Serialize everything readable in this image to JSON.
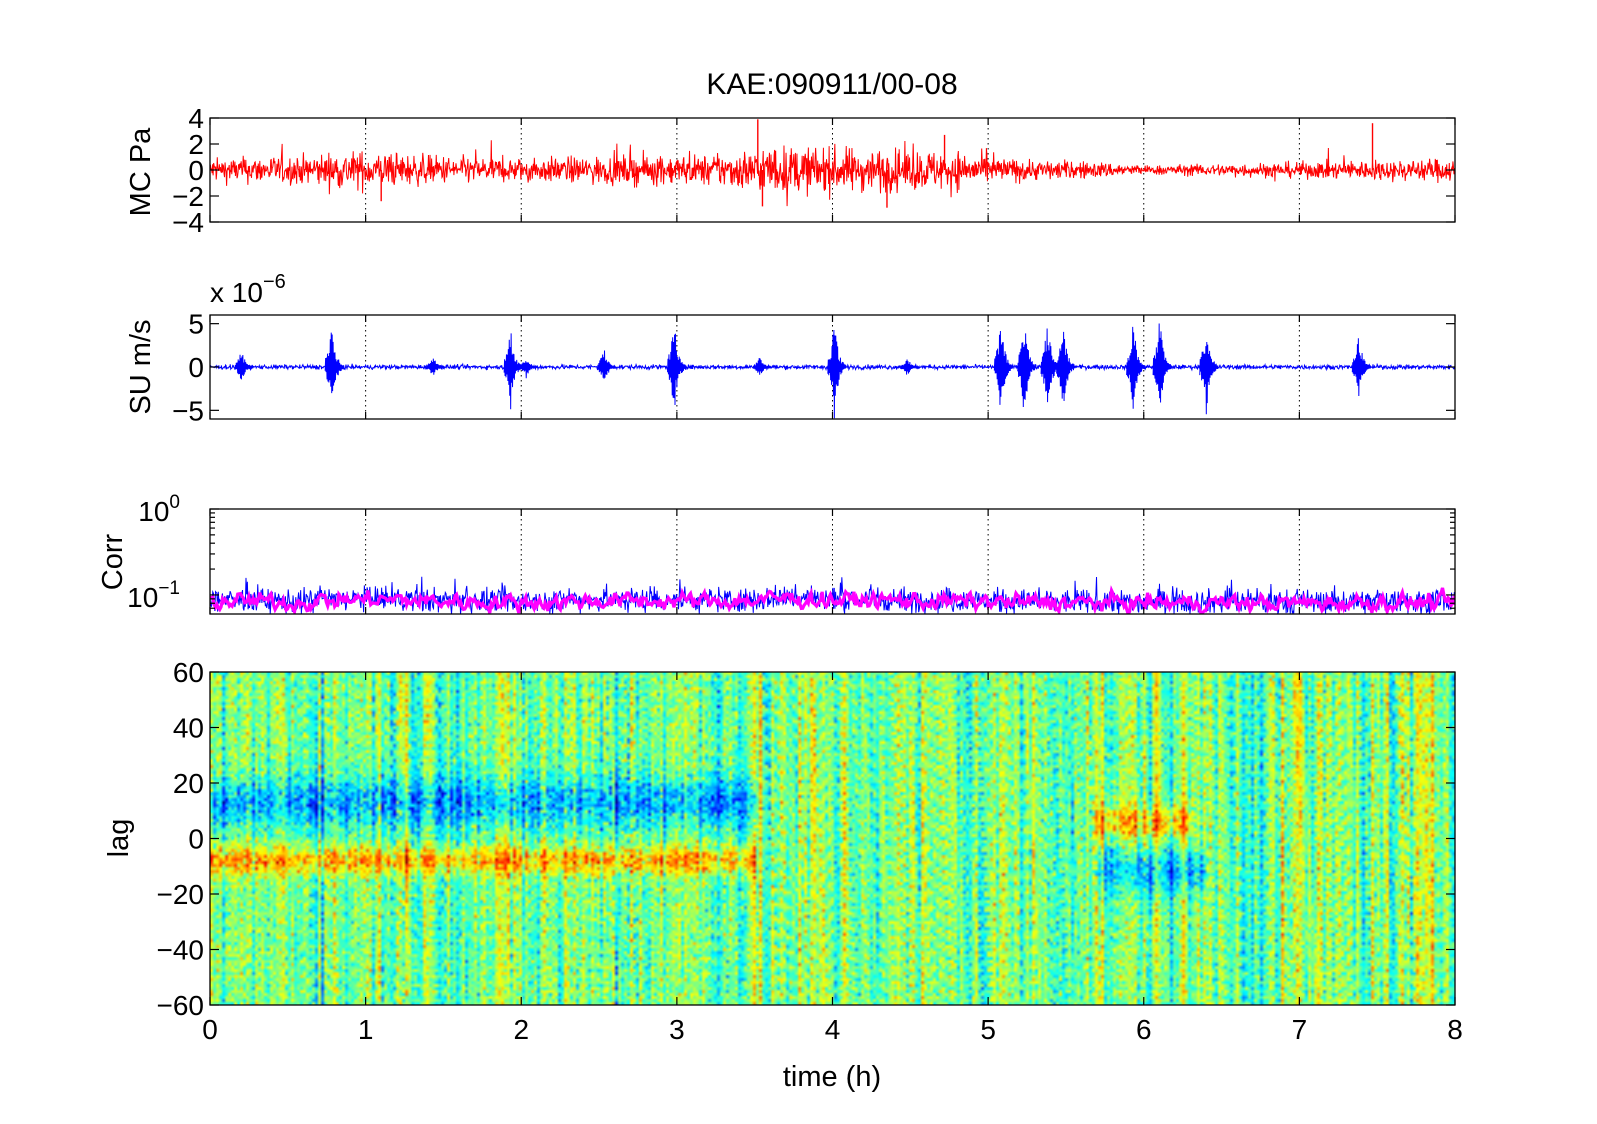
{
  "figure": {
    "title": "KAE:090911/00-08",
    "xlabel": "time (h)"
  },
  "colors": {
    "pressure": "#ff0000",
    "velocity": "#0000ff",
    "corr_raw": "#0000ff",
    "corr_smooth": "#ff00ff"
  },
  "chart_data": [
    {
      "type": "line",
      "name": "pressure",
      "ylabel": "MC Pa",
      "xlim": [
        0,
        8
      ],
      "ylim": [
        -4,
        4
      ],
      "xticks": [
        0,
        1,
        2,
        3,
        4,
        5,
        6,
        7,
        8
      ],
      "yticks": [
        -4,
        -2,
        0,
        2,
        4
      ],
      "ytick_labels": [
        "−4",
        "−2",
        "0",
        "2",
        "4"
      ],
      "grid": "x-dotted",
      "amplitude_envelope": {
        "x": [
          0,
          0.3,
          0.6,
          0.9,
          1.2,
          1.6,
          2.0,
          2.4,
          2.8,
          3.2,
          3.6,
          4.0,
          4.4,
          4.8,
          5.0,
          5.3,
          5.6,
          5.8,
          6.0,
          6.4,
          6.8,
          7.2,
          7.6,
          8.0
        ],
        "y": [
          0.8,
          0.9,
          1.0,
          1.3,
          1.1,
          0.9,
          0.8,
          0.9,
          1.0,
          1.0,
          1.6,
          1.5,
          1.4,
          1.3,
          0.9,
          0.7,
          0.6,
          0.5,
          0.3,
          0.4,
          0.5,
          0.6,
          0.7,
          0.8
        ]
      },
      "spikes": [
        {
          "x": 1.1,
          "y": -2.4
        },
        {
          "x": 3.52,
          "y": 3.9
        },
        {
          "x": 3.55,
          "y": -2.8
        },
        {
          "x": 4.35,
          "y": -2.9
        },
        {
          "x": 4.72,
          "y": 2.7
        },
        {
          "x": 7.47,
          "y": 3.6
        }
      ]
    },
    {
      "type": "line",
      "name": "velocity",
      "ylabel": "SU m/s",
      "scale_label": "x 10",
      "scale_exponent": "−6",
      "xlim": [
        0,
        8
      ],
      "ylim": [
        -6,
        6
      ],
      "xticks": [
        0,
        1,
        2,
        3,
        4,
        5,
        6,
        7,
        8
      ],
      "yticks": [
        -5,
        0,
        5
      ],
      "ytick_labels": [
        "−5",
        "0",
        "5"
      ],
      "grid": "x-dotted",
      "baseline_amplitude": 0.25,
      "bursts": [
        {
          "x": 0.22,
          "amp": 2.2
        },
        {
          "x": 0.8,
          "amp": 5.8
        },
        {
          "x": 1.45,
          "amp": 1.4
        },
        {
          "x": 1.95,
          "amp": 5.0
        },
        {
          "x": 2.05,
          "amp": 1.3
        },
        {
          "x": 2.55,
          "amp": 2.5
        },
        {
          "x": 3.0,
          "amp": 6.0
        },
        {
          "x": 3.55,
          "amp": 1.3
        },
        {
          "x": 4.03,
          "amp": 6.0
        },
        {
          "x": 4.5,
          "amp": 1.2
        },
        {
          "x": 5.1,
          "amp": 6.0
        },
        {
          "x": 5.25,
          "amp": 6.0
        },
        {
          "x": 5.4,
          "amp": 6.0
        },
        {
          "x": 5.5,
          "amp": 6.0
        },
        {
          "x": 5.95,
          "amp": 5.8
        },
        {
          "x": 6.12,
          "amp": 6.0
        },
        {
          "x": 6.42,
          "amp": 5.5
        },
        {
          "x": 7.4,
          "amp": 4.0
        }
      ]
    },
    {
      "type": "line",
      "name": "correlation",
      "ylabel": "Corr",
      "yscale": "log",
      "xlim": [
        0,
        8
      ],
      "ylim": [
        0.06,
        1
      ],
      "xticks": [
        0,
        1,
        2,
        3,
        4,
        5,
        6,
        7,
        8
      ],
      "yticks": [
        0.1,
        1
      ],
      "ytick_labels": [
        {
          "base": "10",
          "exp": "−1"
        },
        {
          "base": "10",
          "exp": "0"
        }
      ],
      "grid": "x-dotted",
      "raw_level": {
        "x": [
          0,
          0.5,
          1.0,
          1.5,
          2.0,
          2.5,
          3.0,
          3.5,
          3.7,
          4.0,
          4.5,
          5.0,
          5.5,
          6.0,
          6.5,
          7.0,
          7.5,
          8.0
        ],
        "y": [
          0.088,
          0.084,
          0.091,
          0.086,
          0.084,
          0.088,
          0.087,
          0.088,
          0.095,
          0.089,
          0.088,
          0.085,
          0.083,
          0.083,
          0.083,
          0.082,
          0.085,
          0.083
        ]
      },
      "smooth_level": {
        "x": [
          0,
          0.5,
          1.0,
          1.5,
          2.0,
          2.5,
          3.0,
          3.5,
          3.7,
          4.0,
          4.5,
          5.0,
          5.5,
          6.0,
          6.5,
          7.0,
          7.5,
          8.0
        ],
        "y": [
          0.086,
          0.082,
          0.089,
          0.084,
          0.082,
          0.086,
          0.085,
          0.086,
          0.092,
          0.087,
          0.086,
          0.083,
          0.081,
          0.081,
          0.081,
          0.08,
          0.083,
          0.081
        ]
      }
    },
    {
      "type": "heatmap",
      "name": "lag-correlation",
      "ylabel": "lag",
      "xlabel": "time (h)",
      "xlim": [
        0,
        8
      ],
      "ylim": [
        -60,
        60
      ],
      "xticks": [
        0,
        1,
        2,
        3,
        4,
        5,
        6,
        7,
        8
      ],
      "xtick_labels": [
        "0",
        "1",
        "2",
        "3",
        "4",
        "5",
        "6",
        "7",
        "8"
      ],
      "yticks": [
        -60,
        -40,
        -20,
        0,
        20,
        40,
        60
      ],
      "ytick_labels": [
        "−60",
        "−40",
        "−20",
        "0",
        "20",
        "40",
        "60"
      ],
      "colormap": "jet",
      "features": [
        {
          "x_range": [
            0,
            3.5
          ],
          "lag_center": 13,
          "lag_width": 9,
          "value": -0.55
        },
        {
          "x_range": [
            0,
            3.5
          ],
          "lag_center": -8,
          "lag_width": 5,
          "value": 0.6
        },
        {
          "x_range": [
            5.7,
            6.3
          ],
          "lag_center": 6,
          "lag_width": 6,
          "value": 0.55
        },
        {
          "x_range": [
            5.7,
            6.4
          ],
          "lag_center": -12,
          "lag_width": 8,
          "value": -0.5
        }
      ]
    }
  ]
}
